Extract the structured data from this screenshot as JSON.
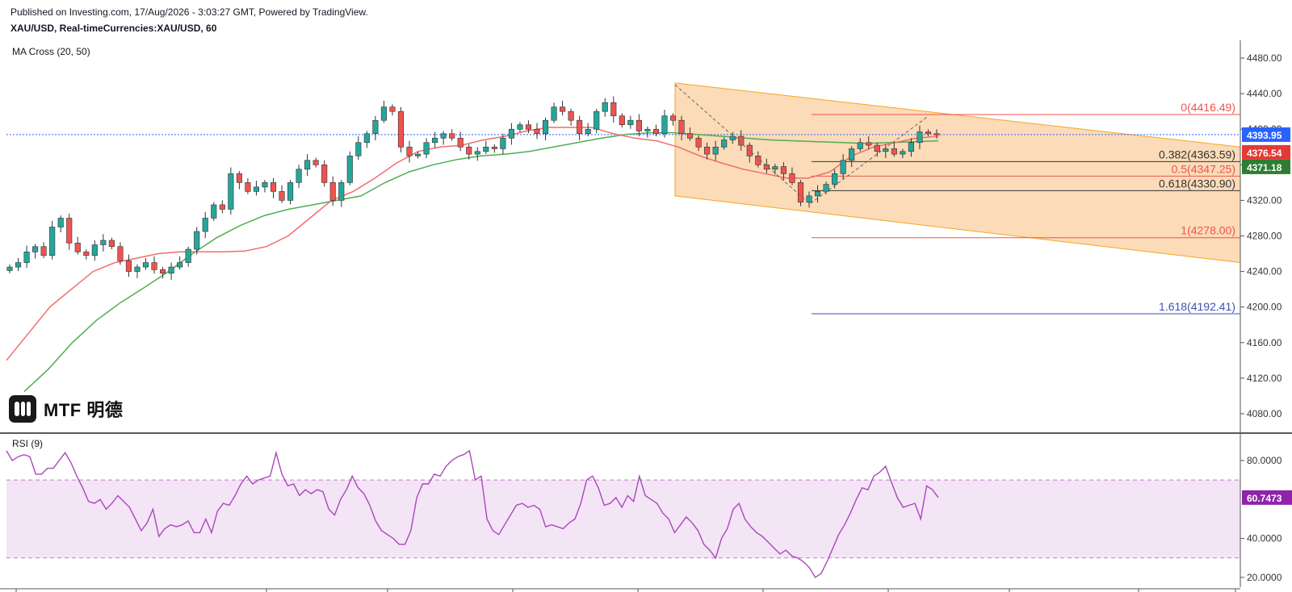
{
  "header": {
    "published": "Published on Investing.com, 17/Aug/2026 - 3:03:27 GMT, Powered by TradingView.",
    "symbol": "XAU/USD, Real-timeCurrencies:XAU/USD, 60"
  },
  "indicators": {
    "ma_label": "MA Cross (20, 50)",
    "rsi_label": "RSI (9)"
  },
  "logo": {
    "text": "MTF 明德"
  },
  "colors": {
    "bull": "#26a69a",
    "bear": "#ef5350",
    "ma_fast": "#f26c6c",
    "ma_slow": "#4caf50",
    "channel": "#f9cfa0",
    "rsi_line": "#ab47bc",
    "rsi_band": "#f3e5f5"
  },
  "chart_data": [
    {
      "type": "candlestick",
      "title": "XAU/USD, 60",
      "ylim": [
        4060,
        4500
      ],
      "y_ticks": [
        "4480.00",
        "4440.00",
        "4400.00",
        "4360.00",
        "4320.00",
        "4280.00",
        "4240.00",
        "4200.00",
        "4160.00",
        "4120.00",
        "4080.00"
      ],
      "ohlc_close_path": [
        4245,
        4250,
        4262,
        4268,
        4258,
        4290,
        4300,
        4272,
        4262,
        4258,
        4270,
        4275,
        4268,
        4252,
        4240,
        4245,
        4250,
        4242,
        4238,
        4245,
        4250,
        4265,
        4285,
        4300,
        4315,
        4310,
        4350,
        4340,
        4330,
        4335,
        4340,
        4330,
        4320,
        4340,
        4355,
        4365,
        4360,
        4340,
        4320,
        4340,
        4370,
        4385,
        4395,
        4410,
        4425,
        4420,
        4380,
        4370,
        4372,
        4385,
        4390,
        4395,
        4390,
        4380,
        4372,
        4375,
        4380,
        4378,
        4390,
        4400,
        4405,
        4400,
        4395,
        4410,
        4425,
        4420,
        4410,
        4395,
        4400,
        4420,
        4430,
        4415,
        4405,
        4410,
        4398,
        4400,
        4395,
        4415,
        4410,
        4395,
        4390,
        4380,
        4372,
        4380,
        4388,
        4392,
        4382,
        4370,
        4360,
        4355,
        4358,
        4350,
        4340,
        4318,
        4325,
        4330,
        4338,
        4350,
        4365,
        4378,
        4385,
        4382,
        4375,
        4378,
        4372,
        4375,
        4385,
        4397,
        4395,
        4394
      ],
      "ma_series": [
        {
          "name": "MA 20",
          "color": "#f26c6c",
          "values": [
            4140,
            4170,
            4200,
            4220,
            4240,
            4250,
            4255,
            4260,
            4262,
            4262,
            4262,
            4263,
            4268,
            4280,
            4300,
            4320,
            4330,
            4345,
            4362,
            4375,
            4380,
            4382,
            4388,
            4392,
            4398,
            4402,
            4402,
            4402,
            4395,
            4390,
            4387,
            4380,
            4370,
            4362,
            4355,
            4350,
            4345,
            4345,
            4352,
            4370,
            4380,
            4385,
            4390,
            4392
          ]
        },
        {
          "name": "MA 50",
          "color": "#4caf50",
          "values": [
            4105,
            4130,
            4160,
            4185,
            4205,
            4222,
            4240,
            4260,
            4278,
            4292,
            4303,
            4310,
            4315,
            4320,
            4325,
            4340,
            4352,
            4360,
            4366,
            4370,
            4372,
            4375,
            4380,
            4385,
            4390,
            4394,
            4396,
            4396,
            4394,
            4392,
            4390,
            4388,
            4387,
            4386,
            4385,
            4384,
            4385,
            4386,
            4387
          ]
        }
      ],
      "fibonacci": [
        {
          "label": "0(4416.49)",
          "value": 4416.49,
          "color": "#ef5350"
        },
        {
          "label": "0.382(4363.59)",
          "value": 4363.59,
          "color": "#333333"
        },
        {
          "label": "0.5(4347.25)",
          "value": 4347.25,
          "color": "#ef5350"
        },
        {
          "label": "0.618(4330.90)",
          "value": 4330.9,
          "color": "#333333"
        },
        {
          "label": "1(4278.00)",
          "value": 4278.0,
          "color": "#ef5350"
        },
        {
          "label": "1.618(4192.41)",
          "value": 4192.41,
          "color": "#3f51b5"
        }
      ],
      "price_tags": [
        {
          "label": "4393.95",
          "value": 4393.95,
          "color": "#2962ff"
        },
        {
          "label": "4376.54",
          "value": 4376.54,
          "color": "#e53935"
        },
        {
          "label": "4371.18",
          "value": 4371.18,
          "color": "#2e7d32"
        }
      ]
    },
    {
      "type": "line",
      "title": "RSI (9)",
      "ylim": [
        15,
        92
      ],
      "y_ticks": [
        "80.0000",
        "40.0000",
        "20.0000"
      ],
      "band": [
        30,
        70
      ],
      "current_label": "60.7473",
      "values": [
        85,
        80,
        82,
        83,
        82,
        73,
        73,
        76,
        76,
        80,
        84,
        79,
        72,
        66,
        59,
        58,
        60,
        55,
        58,
        62,
        59,
        56,
        50,
        44,
        48,
        55,
        41,
        45,
        47,
        46,
        47,
        49,
        43,
        43,
        50,
        43,
        54,
        58,
        57,
        62,
        68,
        72,
        68,
        70,
        71,
        72,
        84,
        73,
        67,
        68,
        62,
        65,
        63,
        65,
        64,
        55,
        52,
        60,
        65,
        72,
        66,
        63,
        57,
        49,
        44,
        42,
        40,
        37,
        37,
        44,
        61,
        68,
        68,
        73,
        72,
        77,
        80,
        82,
        83,
        85,
        70,
        72,
        50,
        44,
        42,
        47,
        52,
        57,
        58,
        56,
        57,
        55,
        46,
        47,
        46,
        45,
        48,
        50,
        58,
        70,
        72,
        66,
        57,
        58,
        61,
        56,
        62,
        59,
        72,
        62,
        60,
        58,
        53,
        50,
        43,
        47,
        51,
        48,
        44,
        37,
        34,
        30,
        40,
        45,
        55,
        58,
        50,
        46,
        43,
        41,
        38,
        35,
        32,
        34,
        31,
        30,
        28,
        25,
        20,
        22,
        28,
        35,
        42,
        47,
        53,
        60,
        66,
        65,
        72,
        74,
        77,
        69,
        61,
        56,
        57,
        58,
        50,
        67,
        65,
        61
      ]
    }
  ]
}
